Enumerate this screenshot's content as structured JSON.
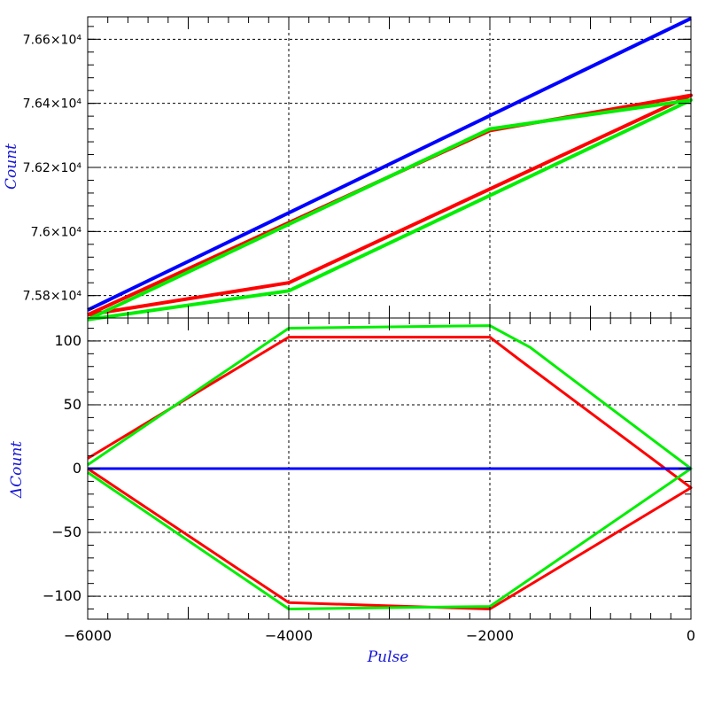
{
  "chart_data": [
    {
      "type": "line",
      "panel": "top",
      "ylabel": "Count",
      "xlim": [
        -6000,
        0
      ],
      "ylim": [
        75730,
        76670
      ],
      "grid": true,
      "y_ticks": [
        {
          "value": 75800,
          "label": "7.58×10⁴"
        },
        {
          "value": 76000,
          "label": "7.6×10⁴"
        },
        {
          "value": 76200,
          "label": "7.62×10⁴"
        },
        {
          "value": 76400,
          "label": "7.64×10⁴"
        },
        {
          "value": 76600,
          "label": "7.66×10⁴"
        }
      ],
      "series": [
        {
          "color": "#0000ff",
          "x": [
            -6000,
            0
          ],
          "y": [
            75755,
            76665
          ]
        },
        {
          "color": "#ff0000",
          "x": [
            -6000,
            -2000,
            0,
            -4000,
            -6000
          ],
          "y": [
            75740,
            76315,
            76425,
            75840,
            75740
          ]
        },
        {
          "color": "#00ee00",
          "x": [
            -6000,
            -2000,
            0,
            -4000,
            -6000
          ],
          "y": [
            75725,
            76320,
            76410,
            75815,
            75725
          ]
        }
      ]
    },
    {
      "type": "line",
      "panel": "bottom",
      "xlabel": "Pulse",
      "ylabel": "ΔCount",
      "xlim": [
        -6000,
        0
      ],
      "ylim": [
        -118,
        118
      ],
      "grid": true,
      "x_ticks": [
        -6000,
        -4000,
        -2000,
        0
      ],
      "x_ticklabels": [
        "−6000",
        "−4000",
        "−2000",
        "0"
      ],
      "y_ticks": [
        -100,
        -50,
        0,
        50,
        100
      ],
      "y_ticklabels": [
        "−100",
        "−50",
        "0",
        "50",
        "100"
      ],
      "series": [
        {
          "color": "#ff0000",
          "x": [
            -6000,
            -4000,
            -2000,
            -1700,
            0,
            -2000,
            -4000,
            -6000
          ],
          "y": [
            8,
            103,
            103,
            85,
            -15,
            -110,
            -105,
            0
          ]
        },
        {
          "color": "#00ee00",
          "x": [
            -6000,
            -4000,
            -2000,
            -1600,
            0,
            -2000,
            -4000,
            -6000
          ],
          "y": [
            3,
            110,
            112,
            95,
            0,
            -108,
            -110,
            -3
          ]
        },
        {
          "color": "#0000ff",
          "x": [
            -6000,
            0
          ],
          "y": [
            0,
            0
          ]
        }
      ]
    }
  ]
}
